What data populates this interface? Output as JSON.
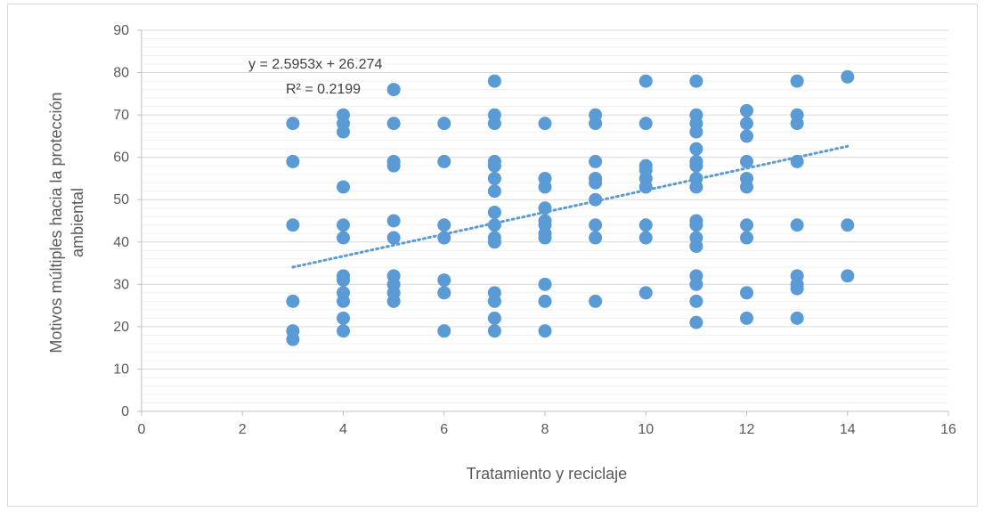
{
  "chart_data": {
    "type": "scatter",
    "title": "",
    "xlabel": "Tratamiento y reciclaje",
    "ylabel_lines": [
      "Motivos múltiples hacia la protección",
      "ambiental"
    ],
    "xlim": [
      0,
      16
    ],
    "ylim": [
      0,
      90
    ],
    "xticks": [
      0,
      2,
      4,
      6,
      8,
      10,
      12,
      14,
      16
    ],
    "yticks": [
      0,
      10,
      20,
      30,
      40,
      50,
      60,
      70,
      80,
      90
    ],
    "grid": true,
    "legend": "none",
    "marker_color": "#5b9bd5",
    "trendline": {
      "slope": 2.5953,
      "intercept": 26.274,
      "x_range": [
        3,
        14
      ],
      "style": "dotted",
      "color": "#5b9bd5",
      "equation_label": "y = 2.5953x + 26.274",
      "r2_label": "R² = 0.2199"
    },
    "points": [
      {
        "x": 3,
        "y": 68
      },
      {
        "x": 3,
        "y": 59
      },
      {
        "x": 3,
        "y": 44
      },
      {
        "x": 3,
        "y": 26
      },
      {
        "x": 3,
        "y": 19
      },
      {
        "x": 3,
        "y": 17
      },
      {
        "x": 4,
        "y": 70
      },
      {
        "x": 4,
        "y": 68
      },
      {
        "x": 4,
        "y": 66
      },
      {
        "x": 4,
        "y": 53
      },
      {
        "x": 4,
        "y": 44
      },
      {
        "x": 4,
        "y": 41
      },
      {
        "x": 4,
        "y": 32
      },
      {
        "x": 4,
        "y": 31
      },
      {
        "x": 4,
        "y": 28
      },
      {
        "x": 4,
        "y": 26
      },
      {
        "x": 4,
        "y": 22
      },
      {
        "x": 4,
        "y": 19
      },
      {
        "x": 5,
        "y": 76
      },
      {
        "x": 5,
        "y": 68
      },
      {
        "x": 5,
        "y": 59
      },
      {
        "x": 5,
        "y": 58
      },
      {
        "x": 5,
        "y": 45
      },
      {
        "x": 5,
        "y": 41
      },
      {
        "x": 5,
        "y": 32
      },
      {
        "x": 5,
        "y": 30
      },
      {
        "x": 5,
        "y": 28
      },
      {
        "x": 5,
        "y": 26
      },
      {
        "x": 6,
        "y": 68
      },
      {
        "x": 6,
        "y": 59
      },
      {
        "x": 6,
        "y": 44
      },
      {
        "x": 6,
        "y": 41
      },
      {
        "x": 6,
        "y": 31
      },
      {
        "x": 6,
        "y": 28
      },
      {
        "x": 6,
        "y": 19
      },
      {
        "x": 7,
        "y": 78
      },
      {
        "x": 7,
        "y": 70
      },
      {
        "x": 7,
        "y": 68
      },
      {
        "x": 7,
        "y": 59
      },
      {
        "x": 7,
        "y": 58
      },
      {
        "x": 7,
        "y": 55
      },
      {
        "x": 7,
        "y": 52
      },
      {
        "x": 7,
        "y": 47
      },
      {
        "x": 7,
        "y": 44
      },
      {
        "x": 7,
        "y": 41
      },
      {
        "x": 7,
        "y": 40
      },
      {
        "x": 7,
        "y": 28
      },
      {
        "x": 7,
        "y": 26
      },
      {
        "x": 7,
        "y": 22
      },
      {
        "x": 7,
        "y": 19
      },
      {
        "x": 8,
        "y": 68
      },
      {
        "x": 8,
        "y": 55
      },
      {
        "x": 8,
        "y": 53
      },
      {
        "x": 8,
        "y": 48
      },
      {
        "x": 8,
        "y": 45
      },
      {
        "x": 8,
        "y": 44
      },
      {
        "x": 8,
        "y": 42
      },
      {
        "x": 8,
        "y": 41
      },
      {
        "x": 8,
        "y": 30
      },
      {
        "x": 8,
        "y": 26
      },
      {
        "x": 8,
        "y": 19
      },
      {
        "x": 9,
        "y": 70
      },
      {
        "x": 9,
        "y": 68
      },
      {
        "x": 9,
        "y": 59
      },
      {
        "x": 9,
        "y": 55
      },
      {
        "x": 9,
        "y": 54
      },
      {
        "x": 9,
        "y": 50
      },
      {
        "x": 9,
        "y": 44
      },
      {
        "x": 9,
        "y": 41
      },
      {
        "x": 9,
        "y": 26
      },
      {
        "x": 10,
        "y": 78
      },
      {
        "x": 10,
        "y": 68
      },
      {
        "x": 10,
        "y": 58
      },
      {
        "x": 10,
        "y": 57
      },
      {
        "x": 10,
        "y": 55
      },
      {
        "x": 10,
        "y": 53
      },
      {
        "x": 10,
        "y": 44
      },
      {
        "x": 10,
        "y": 41
      },
      {
        "x": 10,
        "y": 28
      },
      {
        "x": 11,
        "y": 78
      },
      {
        "x": 11,
        "y": 70
      },
      {
        "x": 11,
        "y": 68
      },
      {
        "x": 11,
        "y": 66
      },
      {
        "x": 11,
        "y": 62
      },
      {
        "x": 11,
        "y": 59
      },
      {
        "x": 11,
        "y": 58
      },
      {
        "x": 11,
        "y": 55
      },
      {
        "x": 11,
        "y": 53
      },
      {
        "x": 11,
        "y": 45
      },
      {
        "x": 11,
        "y": 44
      },
      {
        "x": 11,
        "y": 41
      },
      {
        "x": 11,
        "y": 39
      },
      {
        "x": 11,
        "y": 32
      },
      {
        "x": 11,
        "y": 30
      },
      {
        "x": 11,
        "y": 26
      },
      {
        "x": 11,
        "y": 21
      },
      {
        "x": 12,
        "y": 71
      },
      {
        "x": 12,
        "y": 68
      },
      {
        "x": 12,
        "y": 65
      },
      {
        "x": 12,
        "y": 59
      },
      {
        "x": 12,
        "y": 55
      },
      {
        "x": 12,
        "y": 53
      },
      {
        "x": 12,
        "y": 44
      },
      {
        "x": 12,
        "y": 41
      },
      {
        "x": 12,
        "y": 28
      },
      {
        "x": 12,
        "y": 22
      },
      {
        "x": 13,
        "y": 78
      },
      {
        "x": 13,
        "y": 70
      },
      {
        "x": 13,
        "y": 68
      },
      {
        "x": 13,
        "y": 59
      },
      {
        "x": 13,
        "y": 44
      },
      {
        "x": 13,
        "y": 32
      },
      {
        "x": 13,
        "y": 30
      },
      {
        "x": 13,
        "y": 29
      },
      {
        "x": 13,
        "y": 22
      },
      {
        "x": 14,
        "y": 79
      },
      {
        "x": 14,
        "y": 44
      },
      {
        "x": 14,
        "y": 32
      }
    ]
  }
}
